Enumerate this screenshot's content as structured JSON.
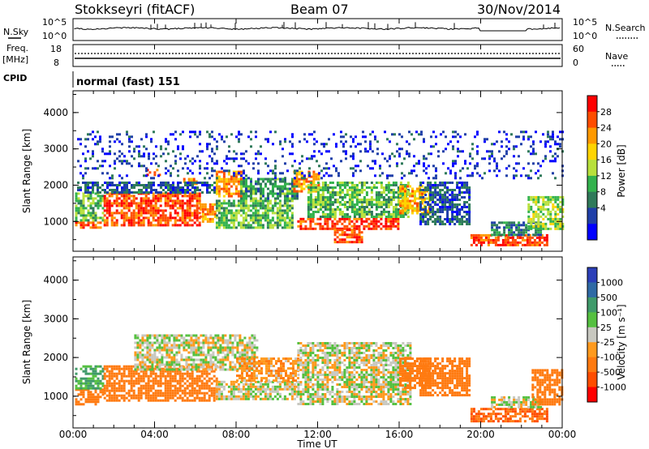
{
  "header": {
    "station": "Stokkseyri (fitACF)",
    "beam": "Beam 07",
    "date": "30/Nov/2014"
  },
  "panels": {
    "nsky": {
      "label": "N.Sky",
      "ticks": [
        "10^5",
        "10^0"
      ]
    },
    "nsearch": {
      "label": "N.Search",
      "ticks": [
        "10^5",
        "10^0"
      ]
    },
    "freq": {
      "label_top": "Freq.",
      "label_bottom": "[MHz]",
      "ticks": [
        "18",
        "8"
      ]
    },
    "nave": {
      "label": "Nave",
      "ticks": [
        "60",
        "0"
      ]
    },
    "cpid": {
      "label": "CPID",
      "value": "normal (fast) 151"
    }
  },
  "power_colorbar": {
    "label": "Power [dB]",
    "ticks": [
      "28",
      "24",
      "20",
      "16",
      "12",
      "8",
      "4"
    ],
    "colors": [
      "#ff0000",
      "#ff4d00",
      "#ff9900",
      "#ffd400",
      "#b8e03c",
      "#33b24d",
      "#2f7a5a",
      "#1f3fa8",
      "#0000ff"
    ]
  },
  "velocity_colorbar": {
    "label": "Velocity [m s⁻¹]",
    "ticks": [
      "1000",
      "500",
      "100",
      "25",
      "-25",
      "-100",
      "-500",
      "-1000"
    ],
    "colors": [
      "#2b3fb8",
      "#2f6aa5",
      "#3f9a6a",
      "#55c040",
      "#c8c8c0",
      "#ff9a1e",
      "#ff7a10",
      "#ff4d00",
      "#ff0000"
    ]
  },
  "x_axis": {
    "label": "Time UT",
    "ticks": [
      "00:00",
      "04:00",
      "08:00",
      "12:00",
      "16:00",
      "20:00",
      "00:00"
    ]
  },
  "y_axis": {
    "label": "Slant Range [km]",
    "ticks": [
      "4000",
      "3000",
      "2000",
      "1000"
    ]
  },
  "chart_data": [
    {
      "type": "heatmap",
      "title": "Power",
      "xlabel": "Time UT",
      "ylabel": "Slant Range [km]",
      "xlim": [
        0,
        24
      ],
      "ylim": [
        180,
        4600
      ],
      "colorbar_label": "Power [dB]",
      "regions": [
        {
          "t0": 0.1,
          "t1": 1.4,
          "r0": 800,
          "r1": 1000,
          "level": 26
        },
        {
          "t0": 0.1,
          "t1": 1.5,
          "r0": 1000,
          "r1": 1800,
          "level": 14
        },
        {
          "t0": 1.5,
          "t1": 6.2,
          "r0": 900,
          "r1": 1800,
          "level": 27
        },
        {
          "t0": 6.2,
          "t1": 7.0,
          "r0": 1000,
          "r1": 1500,
          "level": 24
        },
        {
          "t0": 3.6,
          "t1": 4.3,
          "r0": 2250,
          "r1": 2450,
          "level": 27
        },
        {
          "t0": 5.4,
          "t1": 6.0,
          "r0": 2000,
          "r1": 2200,
          "level": 25
        },
        {
          "t0": 7.0,
          "t1": 8.4,
          "r0": 1700,
          "r1": 2400,
          "level": 24
        },
        {
          "t0": 0.2,
          "t1": 7.0,
          "r0": 1800,
          "r1": 2100,
          "level": 8
        },
        {
          "t0": 7.0,
          "t1": 10.8,
          "r0": 800,
          "r1": 1600,
          "level": 14
        },
        {
          "t0": 8.2,
          "t1": 11.0,
          "r0": 1600,
          "r1": 2200,
          "level": 12
        },
        {
          "t0": 10.8,
          "t1": 12.0,
          "r0": 1800,
          "r1": 2400,
          "level": 24
        },
        {
          "t0": 11.0,
          "t1": 16.0,
          "r0": 800,
          "r1": 1100,
          "level": 28
        },
        {
          "t0": 12.8,
          "t1": 14.2,
          "r0": 400,
          "r1": 800,
          "level": 27
        },
        {
          "t0": 11.5,
          "t1": 16.5,
          "r0": 1100,
          "r1": 2100,
          "level": 14
        },
        {
          "t0": 16.0,
          "t1": 17.5,
          "r0": 1200,
          "r1": 2000,
          "level": 22
        },
        {
          "t0": 17.0,
          "t1": 19.5,
          "r0": 900,
          "r1": 2100,
          "level": 8
        },
        {
          "t0": 19.5,
          "t1": 23.3,
          "r0": 350,
          "r1": 650,
          "level": 27
        },
        {
          "t0": 20.5,
          "t1": 23.0,
          "r0": 650,
          "r1": 1000,
          "level": 10
        },
        {
          "t0": 22.3,
          "t1": 24.0,
          "r0": 800,
          "r1": 1700,
          "level": 16
        },
        {
          "t0": 0.2,
          "t1": 24.0,
          "r0": 2200,
          "r1": 3500,
          "level": 6
        }
      ]
    },
    {
      "type": "heatmap",
      "title": "Velocity",
      "xlabel": "Time UT",
      "ylabel": "Slant Range [km]",
      "xlim": [
        0,
        24
      ],
      "ylim": [
        180,
        4600
      ],
      "colorbar_label": "Velocity [m s⁻¹]",
      "regions": [
        {
          "t0": 0.1,
          "t1": 1.5,
          "r0": 800,
          "r1": 1200,
          "level": -300
        },
        {
          "t0": 0.1,
          "t1": 1.5,
          "r0": 1200,
          "r1": 1800,
          "level": 100
        },
        {
          "t0": 1.5,
          "t1": 7.0,
          "r0": 900,
          "r1": 1800,
          "level": -400
        },
        {
          "t0": 3.0,
          "t1": 9.0,
          "r0": 1700,
          "r1": 2600,
          "level": 0
        },
        {
          "t0": 7.0,
          "t1": 11.0,
          "r0": 900,
          "r1": 1400,
          "level": 0
        },
        {
          "t0": 8.0,
          "t1": 11.0,
          "r0": 1400,
          "r1": 2000,
          "level": -80
        },
        {
          "t0": 11.0,
          "t1": 16.5,
          "r0": 800,
          "r1": 2400,
          "level": 0
        },
        {
          "t0": 16.0,
          "t1": 17.5,
          "r0": 1200,
          "r1": 2000,
          "level": -400
        },
        {
          "t0": 17.0,
          "t1": 19.5,
          "r0": 1000,
          "r1": 2000,
          "level": -200
        },
        {
          "t0": 19.5,
          "t1": 23.3,
          "r0": 350,
          "r1": 700,
          "level": -500
        },
        {
          "t0": 20.5,
          "t1": 23.0,
          "r0": 700,
          "r1": 1000,
          "level": 0
        },
        {
          "t0": 22.5,
          "t1": 24.0,
          "r0": 800,
          "r1": 1700,
          "level": -300
        }
      ]
    }
  ]
}
